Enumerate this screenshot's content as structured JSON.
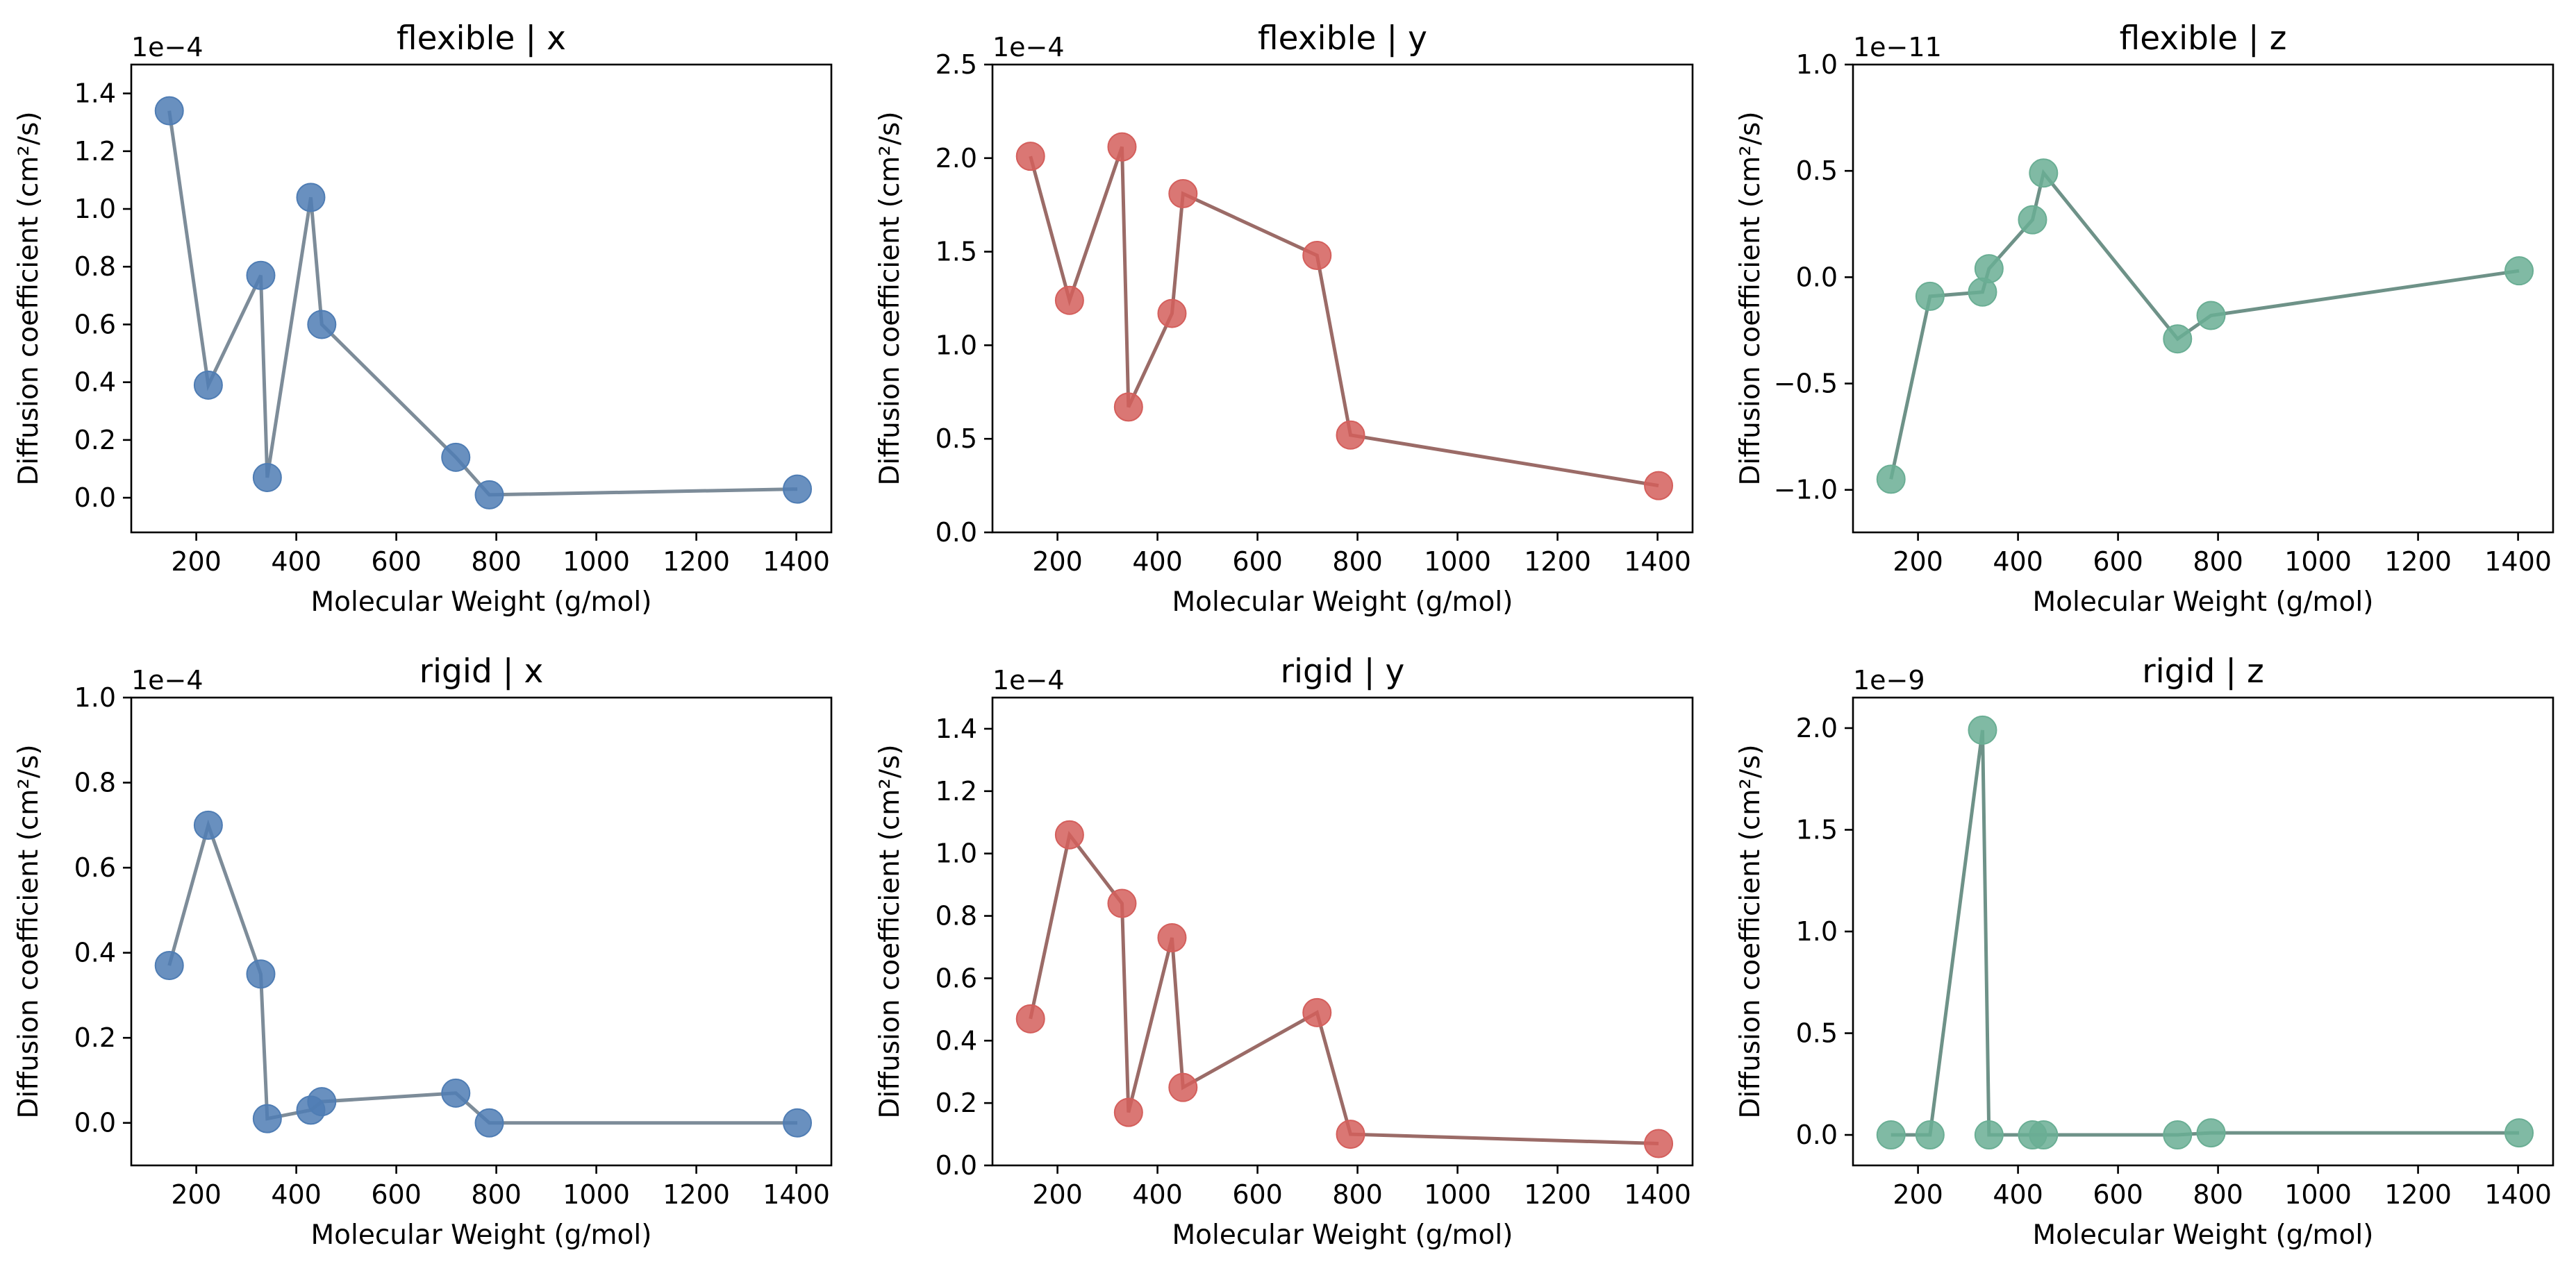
{
  "colors": {
    "blue_marker": "#4f7db4",
    "blue_line": "#7d8c99",
    "red_marker": "#d45f5c",
    "red_line": "#9b6b67",
    "green_marker": "#6aae94",
    "green_line": "#6e9288"
  },
  "chart_data": [
    {
      "type": "line",
      "title": "flexible | x",
      "xlabel": "Molecular Weight (g/mol)",
      "ylabel": "Diffusion coefficient (cm²/s)",
      "offset_label": "1e−4",
      "color": "blue",
      "xlim": [
        70,
        1470
      ],
      "ylim": [
        -0.12,
        1.5
      ],
      "xticks": [
        200,
        400,
        600,
        800,
        1000,
        1200,
        1400
      ],
      "yticks": [
        0.0,
        0.2,
        0.4,
        0.6,
        0.8,
        1.0,
        1.2,
        1.4
      ],
      "ytick_labels": [
        "0.0",
        "0.2",
        "0.4",
        "0.6",
        "0.8",
        "1.0",
        "1.2",
        "1.4"
      ],
      "x": [
        146,
        224,
        329,
        342,
        429,
        451,
        719,
        786,
        1402
      ],
      "y": [
        1.34,
        0.39,
        0.77,
        0.07,
        1.04,
        0.6,
        0.14,
        0.01,
        0.03
      ]
    },
    {
      "type": "line",
      "title": "flexible | y",
      "xlabel": "Molecular Weight (g/mol)",
      "ylabel": "Diffusion coefficient (cm²/s)",
      "offset_label": "1e−4",
      "color": "red",
      "xlim": [
        70,
        1470
      ],
      "ylim": [
        0.0,
        2.5
      ],
      "xticks": [
        200,
        400,
        600,
        800,
        1000,
        1200,
        1400
      ],
      "yticks": [
        0.0,
        0.5,
        1.0,
        1.5,
        2.0,
        2.5
      ],
      "ytick_labels": [
        "0.0",
        "0.5",
        "1.0",
        "1.5",
        "2.0",
        "2.5"
      ],
      "x": [
        146,
        224,
        329,
        342,
        429,
        451,
        719,
        786,
        1402
      ],
      "y": [
        2.01,
        1.24,
        2.06,
        0.67,
        1.17,
        1.81,
        1.48,
        0.52,
        0.25
      ]
    },
    {
      "type": "line",
      "title": "flexible | z",
      "xlabel": "Molecular Weight (g/mol)",
      "ylabel": "Diffusion coefficient (cm²/s)",
      "offset_label": "1e−11",
      "color": "green",
      "xlim": [
        70,
        1470
      ],
      "ylim": [
        -1.2,
        1.0
      ],
      "xticks": [
        200,
        400,
        600,
        800,
        1000,
        1200,
        1400
      ],
      "yticks": [
        -1.0,
        -0.5,
        0.0,
        0.5,
        1.0
      ],
      "ytick_labels": [
        "−1.0",
        "−0.5",
        "0.0",
        "0.5",
        "1.0"
      ],
      "x": [
        146,
        224,
        329,
        342,
        429,
        451,
        719,
        786,
        1402
      ],
      "y": [
        -0.95,
        -0.09,
        -0.07,
        0.04,
        0.27,
        0.49,
        -0.29,
        -0.18,
        0.03
      ]
    },
    {
      "type": "line",
      "title": "rigid | x",
      "xlabel": "Molecular Weight (g/mol)",
      "ylabel": "Diffusion coefficient (cm²/s)",
      "offset_label": "1e−4",
      "color": "blue",
      "xlim": [
        70,
        1470
      ],
      "ylim": [
        -0.1,
        1.0
      ],
      "xticks": [
        200,
        400,
        600,
        800,
        1000,
        1200,
        1400
      ],
      "yticks": [
        0.0,
        0.2,
        0.4,
        0.6,
        0.8,
        1.0
      ],
      "ytick_labels": [
        "0.0",
        "0.2",
        "0.4",
        "0.6",
        "0.8",
        "1.0"
      ],
      "x": [
        146,
        224,
        329,
        342,
        429,
        451,
        719,
        786,
        1402
      ],
      "y": [
        0.37,
        0.7,
        0.35,
        0.01,
        0.03,
        0.05,
        0.07,
        0.0,
        0.0
      ]
    },
    {
      "type": "line",
      "title": "rigid | y",
      "xlabel": "Molecular Weight (g/mol)",
      "ylabel": "Diffusion coefficient (cm²/s)",
      "offset_label": "1e−4",
      "color": "red",
      "xlim": [
        70,
        1470
      ],
      "ylim": [
        0.0,
        1.5
      ],
      "xticks": [
        200,
        400,
        600,
        800,
        1000,
        1200,
        1400
      ],
      "yticks": [
        0.0,
        0.2,
        0.4,
        0.6,
        0.8,
        1.0,
        1.2,
        1.4
      ],
      "ytick_labels": [
        "0.0",
        "0.2",
        "0.4",
        "0.6",
        "0.8",
        "1.0",
        "1.2",
        "1.4"
      ],
      "x": [
        146,
        224,
        329,
        342,
        429,
        451,
        719,
        786,
        1402
      ],
      "y": [
        0.47,
        1.06,
        0.84,
        0.17,
        0.73,
        0.25,
        0.49,
        0.1,
        0.07
      ]
    },
    {
      "type": "line",
      "title": "rigid | z",
      "xlabel": "Molecular Weight (g/mol)",
      "ylabel": "Diffusion coefficient (cm²/s)",
      "offset_label": "1e−9",
      "color": "green",
      "xlim": [
        70,
        1470
      ],
      "ylim": [
        -0.15,
        2.15
      ],
      "xticks": [
        200,
        400,
        600,
        800,
        1000,
        1200,
        1400
      ],
      "yticks": [
        0.0,
        0.5,
        1.0,
        1.5,
        2.0
      ],
      "ytick_labels": [
        "0.0",
        "0.5",
        "1.0",
        "1.5",
        "2.0"
      ],
      "x": [
        146,
        224,
        329,
        342,
        429,
        451,
        719,
        786,
        1402
      ],
      "y": [
        0.0,
        0.0,
        1.99,
        0.0,
        0.0,
        0.0,
        0.0,
        0.01,
        0.01
      ]
    }
  ]
}
